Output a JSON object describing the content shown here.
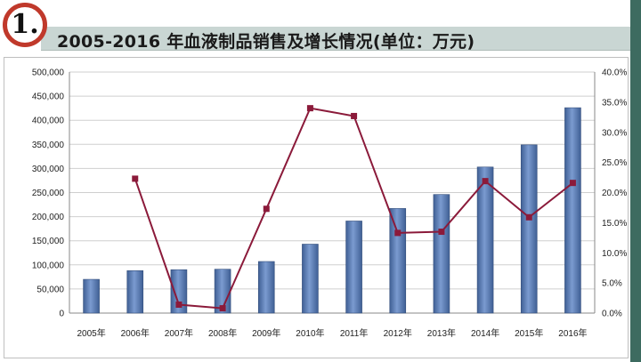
{
  "header": {
    "badge": "1.",
    "title": "2005-2016 年血液制品销售及增长情况(单位：万元)"
  },
  "chart_data": {
    "type": "bar",
    "categories": [
      "2005年",
      "2006年",
      "2007年",
      "2008年",
      "2009年",
      "2010年",
      "2011年",
      "2012年",
      "2013年",
      "2014年",
      "2015年",
      "2016年"
    ],
    "series": [
      {
        "type": "bar",
        "axis": "left",
        "values": [
          70000,
          88000,
          90000,
          91000,
          107000,
          143000,
          191000,
          217000,
          246000,
          303000,
          349000,
          426000
        ]
      },
      {
        "type": "line",
        "axis": "right",
        "values": [
          null,
          22.3,
          1.4,
          0.8,
          17.3,
          34.0,
          32.7,
          13.3,
          13.5,
          21.9,
          15.9,
          21.6
        ]
      }
    ],
    "left_axis": {
      "ylim": [
        0,
        500000
      ],
      "ticks": [
        "0",
        "50,000",
        "100,000",
        "150,000",
        "200,000",
        "250,000",
        "300,000",
        "350,000",
        "400,000",
        "450,000",
        "500,000"
      ]
    },
    "right_axis": {
      "ylim": [
        0,
        40
      ],
      "ticks": [
        "0.0%",
        "5.0%",
        "10.0%",
        "15.0%",
        "20.0%",
        "25.0%",
        "30.0%",
        "35.0%",
        "40.0%"
      ]
    },
    "grid": true,
    "colors": {
      "bar": "#5b7fb5",
      "line": "#8b1a3a"
    }
  }
}
